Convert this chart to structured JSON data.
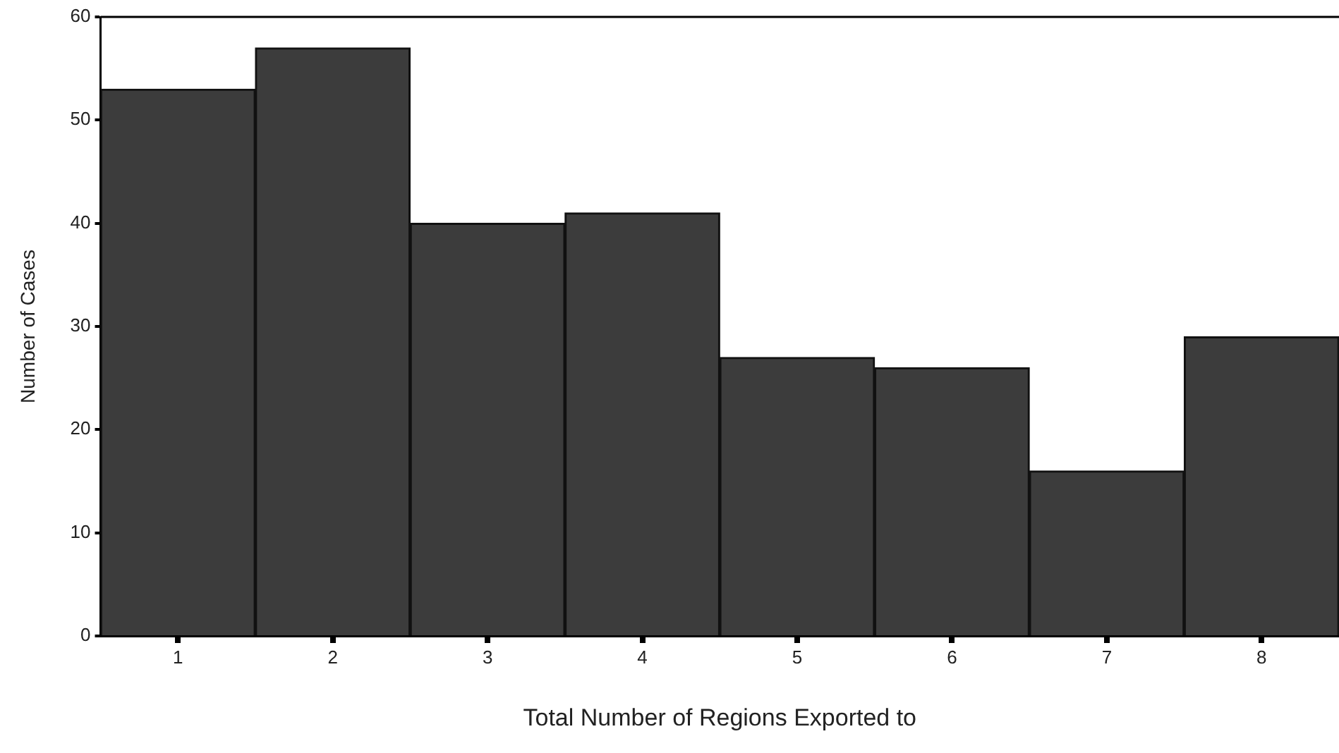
{
  "chart_data": {
    "type": "bar",
    "xlabel": "Total Number of Regions Exported to",
    "ylabel": "Number of Cases",
    "categories": [
      "1",
      "2",
      "3",
      "4",
      "5",
      "6",
      "7",
      "8"
    ],
    "values": [
      53,
      57,
      40,
      41,
      27,
      26,
      16,
      29
    ],
    "color": "#3c3c3c",
    "ylim": [
      0,
      60
    ],
    "yticks": [
      0,
      10,
      20,
      30,
      40,
      50,
      60
    ],
    "grid": false,
    "legend": false
  }
}
